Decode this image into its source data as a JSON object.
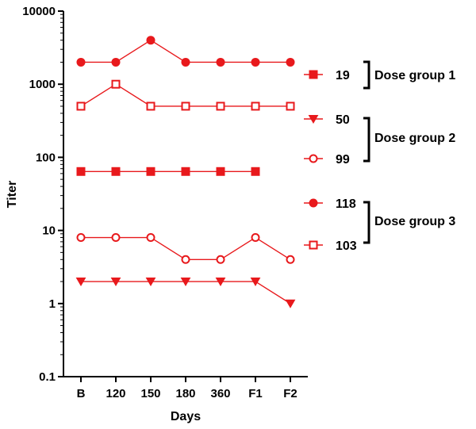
{
  "chart_data": {
    "type": "line",
    "scale_y": "log",
    "ylim": [
      0.1,
      10000
    ],
    "yticks": [
      {
        "value": 0.1,
        "label": "0.1"
      },
      {
        "value": 1,
        "label": "1"
      },
      {
        "value": 10,
        "label": "10"
      },
      {
        "value": 100,
        "label": "100"
      },
      {
        "value": 1000,
        "label": "1000"
      },
      {
        "value": 10000,
        "label": "10000"
      }
    ],
    "categories": [
      "B",
      "120",
      "150",
      "180",
      "360",
      "F1",
      "F2"
    ],
    "xlabel": "Days",
    "ylabel": "Titer",
    "grid": false,
    "color": "#e8191c",
    "series": [
      {
        "name": "19",
        "marker": "square-filled",
        "values": [
          64,
          64,
          64,
          64,
          64,
          64,
          null
        ]
      },
      {
        "name": "50",
        "marker": "triangle-down",
        "values": [
          2,
          2,
          2,
          2,
          2,
          2,
          1
        ]
      },
      {
        "name": "99",
        "marker": "circle-open",
        "values": [
          8,
          8,
          8,
          4,
          4,
          8,
          4
        ]
      },
      {
        "name": "118",
        "marker": "circle-filled",
        "values": [
          2000,
          2000,
          4000,
          2000,
          2000,
          2000,
          2000
        ]
      },
      {
        "name": "103",
        "marker": "square-open",
        "values": [
          500,
          1000,
          500,
          500,
          500,
          500,
          500
        ]
      }
    ],
    "legend_position": "right",
    "groups": [
      {
        "label": "Dose group 1",
        "members": [
          "19"
        ]
      },
      {
        "label": "Dose group 2",
        "members": [
          "50",
          "99"
        ]
      },
      {
        "label": "Dose group 3",
        "members": [
          "118",
          "103"
        ]
      }
    ]
  }
}
